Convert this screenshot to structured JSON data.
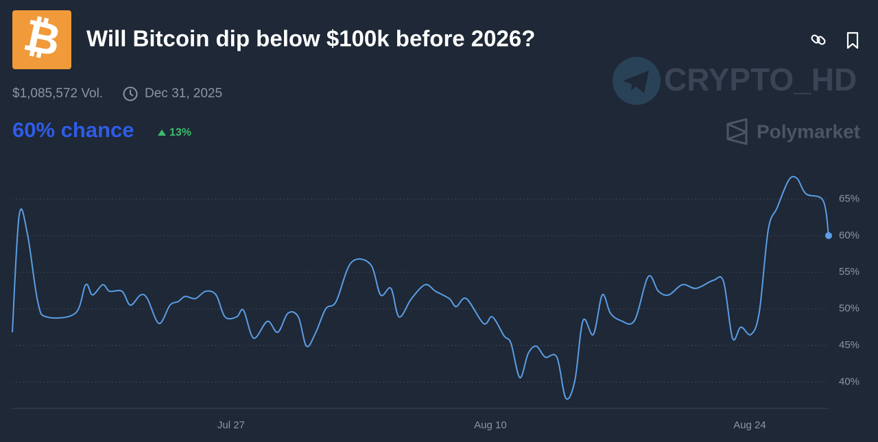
{
  "header": {
    "logo_symbol": "₿",
    "title": "Will Bitcoin dip below $100k before 2026?"
  },
  "market": {
    "volume": "$1,085,572 Vol.",
    "end_date": "Dec 31, 2025",
    "chance": "60% chance",
    "change": "13%"
  },
  "watermark": "CRYPTO_HD",
  "brand": "Polymarket",
  "chart_data": {
    "type": "line",
    "color": "#5b9ee6",
    "grid": true,
    "x": [
      -11.81,
      -11.44,
      -11.0,
      -10.44,
      -9.96,
      -8.41,
      -7.85,
      -7.48,
      -6.93,
      -6.56,
      -5.89,
      -5.44,
      -4.89,
      -4.52,
      -3.89,
      -3.3,
      -2.85,
      -2.48,
      -1.93,
      -1.37,
      -0.81,
      -0.33,
      0.3,
      0.67,
      1.22,
      1.96,
      2.52,
      3.07,
      3.63,
      4.07,
      4.56,
      5.11,
      5.67,
      6.48,
      7.52,
      8.07,
      8.63,
      9.07,
      9.74,
      10.48,
      11.04,
      11.78,
      12.15,
      12.7,
      13.63,
      14.11,
      14.74,
      15.11,
      15.59,
      16.04,
      16.48,
      16.96,
      17.59,
      18.07,
      18.56,
      19.0,
      19.56,
      20.04,
      20.48,
      21.04,
      21.78,
      22.52,
      23.07,
      23.63,
      24.37,
      25.11,
      26.04,
      26.59,
      27.07,
      27.52,
      28.07,
      28.52,
      29.0,
      29.48,
      30.11,
      30.56,
      31.04,
      31.96,
      32.26
    ],
    "values": [
      46.8,
      62.8,
      60.3,
      51.0,
      48.9,
      49.4,
      53.3,
      51.9,
      53.3,
      52.4,
      52.4,
      50.5,
      51.9,
      51.4,
      48.0,
      50.5,
      51.0,
      51.7,
      51.4,
      52.4,
      51.9,
      48.9,
      48.9,
      49.8,
      46.0,
      48.3,
      46.8,
      49.4,
      48.9,
      44.9,
      46.7,
      50.0,
      51.0,
      56.3,
      56.1,
      51.9,
      52.8,
      48.9,
      51.4,
      53.3,
      52.4,
      51.4,
      50.3,
      51.4,
      48.0,
      48.9,
      46.3,
      45.3,
      40.6,
      43.9,
      44.9,
      43.4,
      43.4,
      37.8,
      40.2,
      48.4,
      46.5,
      51.9,
      49.4,
      48.4,
      48.4,
      54.4,
      52.4,
      51.9,
      53.3,
      52.8,
      53.9,
      53.7,
      46.0,
      47.5,
      46.5,
      49.6,
      60.8,
      63.8,
      67.6,
      67.8,
      65.7,
      64.8,
      60.0
    ],
    "xlim": [
      -11.81,
      32.26
    ],
    "xticks": [
      {
        "value": 0,
        "label": "Jul 27"
      },
      {
        "value": 14,
        "label": "Aug 10"
      },
      {
        "value": 28,
        "label": "Aug 24"
      }
    ],
    "ylim": [
      36.4,
      70
    ],
    "yticks": [
      {
        "value": 40,
        "label": "40%"
      },
      {
        "value": 45,
        "label": "45%"
      },
      {
        "value": 50,
        "label": "50%"
      },
      {
        "value": 55,
        "label": "55%"
      },
      {
        "value": 60,
        "label": "60%"
      },
      {
        "value": 65,
        "label": "65%"
      }
    ]
  }
}
